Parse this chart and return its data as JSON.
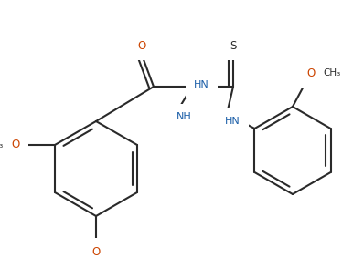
{
  "bg_color": "#ffffff",
  "line_color": "#2a2a2a",
  "blue_color": "#1b5ea8",
  "red_color": "#cc4400",
  "lw": 1.5,
  "figsize": [
    3.86,
    2.83
  ],
  "dpi": 100,
  "xlim": [
    0,
    386
  ],
  "ylim": [
    0,
    283
  ]
}
